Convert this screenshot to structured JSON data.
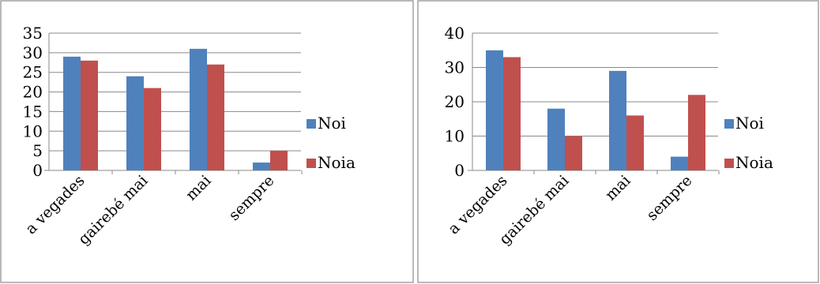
{
  "chart_data": [
    {
      "type": "bar",
      "categories": [
        "a vegades",
        "gairebé mai",
        "mai",
        "sempre"
      ],
      "series": [
        {
          "name": "Noi",
          "values": [
            29,
            24,
            31,
            2
          ]
        },
        {
          "name": "Noia",
          "values": [
            28,
            21,
            27,
            5
          ]
        }
      ],
      "ylim": [
        0,
        35
      ],
      "yticks": [
        0,
        5,
        10,
        15,
        20,
        25,
        30,
        35
      ],
      "grid": true,
      "legend": "right",
      "title": "",
      "xlabel": "",
      "ylabel": ""
    },
    {
      "type": "bar",
      "categories": [
        "a vegades",
        "gairebé mai",
        "mai",
        "sempre"
      ],
      "series": [
        {
          "name": "Noi",
          "values": [
            35,
            18,
            29,
            4
          ]
        },
        {
          "name": "Noia",
          "values": [
            33,
            10,
            16,
            22
          ]
        }
      ],
      "ylim": [
        0,
        40
      ],
      "yticks": [
        0,
        10,
        20,
        30,
        40
      ],
      "grid": true,
      "legend": "right",
      "title": "",
      "xlabel": "",
      "ylabel": ""
    }
  ],
  "colors": {
    "Noi": "#4f81bd",
    "Noia": "#c0504d",
    "frame": "#8a8a8a",
    "grid": "#8a8a8a"
  }
}
